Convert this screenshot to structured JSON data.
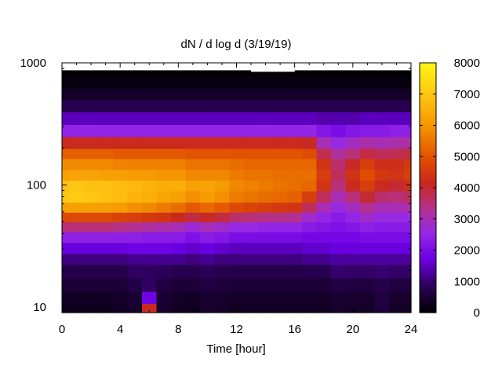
{
  "chart_data": {
    "type": "heatmap",
    "title": "dN / d log d (3/19/19)",
    "xlabel": "Time [hour]",
    "ylabel": "",
    "x_range": [
      0,
      24
    ],
    "x_ticks": [
      0,
      4,
      8,
      12,
      16,
      20,
      24
    ],
    "y_scale": "log",
    "y_range": [
      9,
      1000
    ],
    "y_ticks": [
      10,
      100,
      1000
    ],
    "colorbar": {
      "range": [
        0,
        8000
      ],
      "ticks": [
        0,
        1000,
        2000,
        3000,
        4000,
        5000,
        6000,
        7000,
        8000
      ],
      "palette": "black-purple-red-orange-yellow"
    },
    "diameter_bins": [
      9.5,
      12,
      15,
      20,
      25,
      30,
      38,
      45,
      55,
      65,
      80,
      100,
      120,
      150,
      180,
      220,
      280,
      350,
      450,
      550,
      700,
      870
    ],
    "time_hours": [
      0,
      1,
      2,
      3,
      4,
      5,
      6,
      7,
      8,
      9,
      10,
      11,
      12,
      13,
      14,
      15,
      16,
      17,
      18,
      19,
      20,
      21,
      22,
      23,
      24
    ],
    "values_by_time": [
      [
        300,
        350,
        550,
        750,
        1100,
        1700,
        2400,
        3500,
        4800,
        6200,
        7000,
        6900,
        6200,
        5800,
        5200,
        4200,
        2500,
        1500,
        800,
        400,
        150,
        0
      ],
      [
        300,
        350,
        550,
        750,
        1100,
        1700,
        2400,
        3500,
        4800,
        6200,
        7100,
        7000,
        6300,
        5800,
        5200,
        4200,
        2500,
        1500,
        800,
        400,
        150,
        0
      ],
      [
        300,
        350,
        550,
        750,
        1100,
        1700,
        2400,
        3500,
        4800,
        6200,
        7000,
        6900,
        6300,
        5800,
        5200,
        4200,
        2500,
        1500,
        800,
        400,
        150,
        0
      ],
      [
        300,
        350,
        550,
        750,
        1100,
        1700,
        2400,
        3500,
        4800,
        6200,
        6900,
        6900,
        6200,
        5800,
        5200,
        4200,
        2500,
        1500,
        800,
        400,
        150,
        0
      ],
      [
        350,
        400,
        550,
        750,
        1100,
        1700,
        2400,
        3400,
        4700,
        6100,
        6800,
        6800,
        6200,
        5700,
        5100,
        4200,
        2500,
        1500,
        800,
        400,
        150,
        0
      ],
      [
        450,
        500,
        700,
        900,
        1200,
        1800,
        2400,
        3300,
        4600,
        5900,
        6600,
        6700,
        6100,
        5700,
        5100,
        4200,
        2500,
        1500,
        800,
        400,
        150,
        0
      ],
      [
        4200,
        1800,
        900,
        900,
        1200,
        1800,
        2300,
        3200,
        4500,
        5800,
        6500,
        6600,
        6100,
        5700,
        5100,
        4200,
        2500,
        1500,
        800,
        400,
        150,
        0
      ],
      [
        500,
        500,
        650,
        850,
        1200,
        1800,
        2300,
        3100,
        4400,
        5600,
        6300,
        6500,
        6000,
        5700,
        5100,
        4200,
        2500,
        1500,
        800,
        400,
        150,
        0
      ],
      [
        350,
        400,
        550,
        800,
        1200,
        1700,
        2300,
        3000,
        4200,
        5400,
        6200,
        6500,
        6000,
        5700,
        5100,
        4200,
        2500,
        1500,
        800,
        400,
        150,
        0
      ],
      [
        300,
        350,
        550,
        800,
        1100,
        1600,
        2100,
        2700,
        3900,
        5100,
        5900,
        6200,
        5800,
        5500,
        5000,
        4200,
        2500,
        1500,
        800,
        400,
        150,
        0
      ],
      [
        450,
        500,
        650,
        850,
        1200,
        1700,
        2300,
        3000,
        4100,
        5300,
        6100,
        6300,
        5800,
        5500,
        5000,
        4200,
        2500,
        1500,
        800,
        400,
        150,
        0
      ],
      [
        400,
        450,
        600,
        800,
        1100,
        1600,
        2200,
        2800,
        3900,
        5100,
        5900,
        6100,
        5800,
        5500,
        5000,
        4200,
        2500,
        1500,
        800,
        400,
        150,
        0
      ],
      [
        350,
        400,
        550,
        750,
        1100,
        1500,
        2000,
        2600,
        3600,
        4800,
        5600,
        5800,
        5600,
        5400,
        5000,
        4200,
        2500,
        1500,
        800,
        400,
        150,
        0
      ],
      [
        350,
        400,
        550,
        750,
        1100,
        1500,
        2000,
        2600,
        3500,
        4700,
        5500,
        5700,
        5500,
        5300,
        5000,
        4200,
        2500,
        1500,
        800,
        400,
        150,
        0
      ],
      [
        350,
        400,
        550,
        750,
        1100,
        1500,
        2000,
        2500,
        3400,
        4600,
        5400,
        5600,
        5500,
        5300,
        5000,
        4200,
        2500,
        1500,
        800,
        400,
        150,
        0
      ],
      [
        350,
        400,
        550,
        750,
        1100,
        1500,
        2000,
        2500,
        3400,
        4500,
        5300,
        5500,
        5400,
        5300,
        5000,
        4200,
        2500,
        1500,
        800,
        400,
        150,
        0
      ],
      [
        350,
        400,
        550,
        750,
        1100,
        1500,
        2000,
        2500,
        3300,
        4400,
        5200,
        5400,
        5400,
        5300,
        5000,
        4200,
        2500,
        1500,
        800,
        400,
        150,
        0
      ],
      [
        350,
        400,
        550,
        800,
        1200,
        1600,
        1900,
        2300,
        2800,
        3700,
        4600,
        5300,
        5400,
        5300,
        4900,
        4100,
        2500,
        1500,
        800,
        400,
        150,
        0
      ],
      [
        350,
        400,
        550,
        800,
        1200,
        1600,
        1900,
        2200,
        2500,
        3000,
        3700,
        4400,
        4600,
        4400,
        3800,
        3000,
        2200,
        1400,
        800,
        400,
        150,
        0
      ],
      [
        450,
        500,
        700,
        1000,
        1300,
        1700,
        1900,
        2100,
        2300,
        2600,
        3000,
        3500,
        3700,
        3600,
        3200,
        2600,
        2000,
        1400,
        800,
        400,
        150,
        0
      ],
      [
        400,
        450,
        650,
        950,
        1300,
        1700,
        1900,
        2200,
        2500,
        2900,
        3500,
        4200,
        4400,
        4100,
        3500,
        2900,
        2200,
        1400,
        800,
        400,
        150,
        0
      ],
      [
        400,
        450,
        650,
        950,
        1300,
        1700,
        2000,
        2400,
        2800,
        3300,
        4000,
        4600,
        4900,
        4600,
        3900,
        3100,
        2300,
        1500,
        800,
        400,
        150,
        0
      ],
      [
        600,
        650,
        750,
        1000,
        1300,
        1700,
        2000,
        2300,
        2600,
        3000,
        3600,
        4200,
        4500,
        4300,
        3700,
        3000,
        2300,
        1500,
        800,
        400,
        150,
        0
      ],
      [
        400,
        450,
        650,
        950,
        1300,
        1700,
        2000,
        2300,
        2600,
        3000,
        3500,
        4000,
        4400,
        4300,
        3800,
        3100,
        2400,
        1500,
        800,
        400,
        150,
        0
      ],
      [
        400,
        450,
        650,
        950,
        1300,
        1700,
        2000,
        2300,
        2600,
        3100,
        3700,
        4300,
        4600,
        4500,
        3900,
        3200,
        2400,
        1500,
        800,
        400,
        150,
        0
      ]
    ],
    "missing_data": {
      "time_hours": [
        13,
        16
      ],
      "diameter_min": 870
    },
    "legend": "colorbar-right",
    "grid": false
  }
}
